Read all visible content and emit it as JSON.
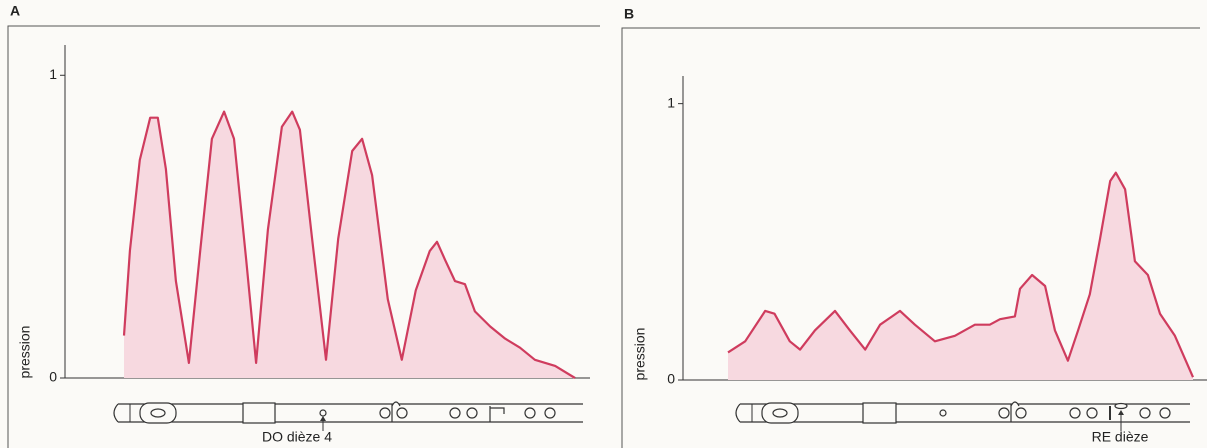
{
  "chart_data": [
    {
      "type": "area",
      "label": "A",
      "ylabel": "pression",
      "annotation": "DO dièze 4",
      "color": "#cf3c5e",
      "fill_color": "#f7d9e0",
      "xlim": [
        0,
        1
      ],
      "ylim": [
        0,
        1.1
      ],
      "yticks": [
        0,
        1
      ],
      "x": [
        0,
        0.013,
        0.035,
        0.058,
        0.075,
        0.093,
        0.115,
        0.144,
        0.169,
        0.195,
        0.222,
        0.244,
        0.271,
        0.293,
        0.319,
        0.35,
        0.373,
        0.39,
        0.417,
        0.448,
        0.475,
        0.506,
        0.528,
        0.55,
        0.585,
        0.616,
        0.647,
        0.678,
        0.694,
        0.712,
        0.734,
        0.756,
        0.778,
        0.812,
        0.845,
        0.878,
        0.911,
        0.956,
        1
      ],
      "values": [
        0.14,
        0.42,
        0.72,
        0.86,
        0.86,
        0.69,
        0.32,
        0.05,
        0.42,
        0.79,
        0.88,
        0.79,
        0.39,
        0.05,
        0.49,
        0.83,
        0.88,
        0.82,
        0.46,
        0.06,
        0.46,
        0.75,
        0.79,
        0.67,
        0.26,
        0.06,
        0.29,
        0.42,
        0.45,
        0.39,
        0.32,
        0.31,
        0.22,
        0.17,
        0.13,
        0.1,
        0.06,
        0.04,
        0
      ]
    },
    {
      "type": "area",
      "label": "B",
      "ylabel": "pression",
      "annotation": "RE dièze",
      "color": "#cf3c5e",
      "fill_color": "#f7d9e0",
      "xlim": [
        0,
        1
      ],
      "ylim": [
        0,
        1.1
      ],
      "yticks": [
        0,
        1
      ],
      "x": [
        0,
        0.037,
        0.08,
        0.1,
        0.133,
        0.155,
        0.187,
        0.23,
        0.262,
        0.295,
        0.327,
        0.37,
        0.402,
        0.445,
        0.488,
        0.531,
        0.563,
        0.585,
        0.617,
        0.628,
        0.654,
        0.682,
        0.703,
        0.731,
        0.753,
        0.778,
        0.8,
        0.822,
        0.834,
        0.854,
        0.875,
        0.903,
        0.929,
        0.961,
        1
      ],
      "values": [
        0.1,
        0.14,
        0.25,
        0.24,
        0.14,
        0.11,
        0.18,
        0.25,
        0.18,
        0.11,
        0.2,
        0.25,
        0.2,
        0.14,
        0.16,
        0.2,
        0.2,
        0.22,
        0.23,
        0.33,
        0.38,
        0.34,
        0.18,
        0.07,
        0.18,
        0.31,
        0.51,
        0.72,
        0.75,
        0.69,
        0.43,
        0.38,
        0.24,
        0.16,
        0.01
      ]
    }
  ]
}
